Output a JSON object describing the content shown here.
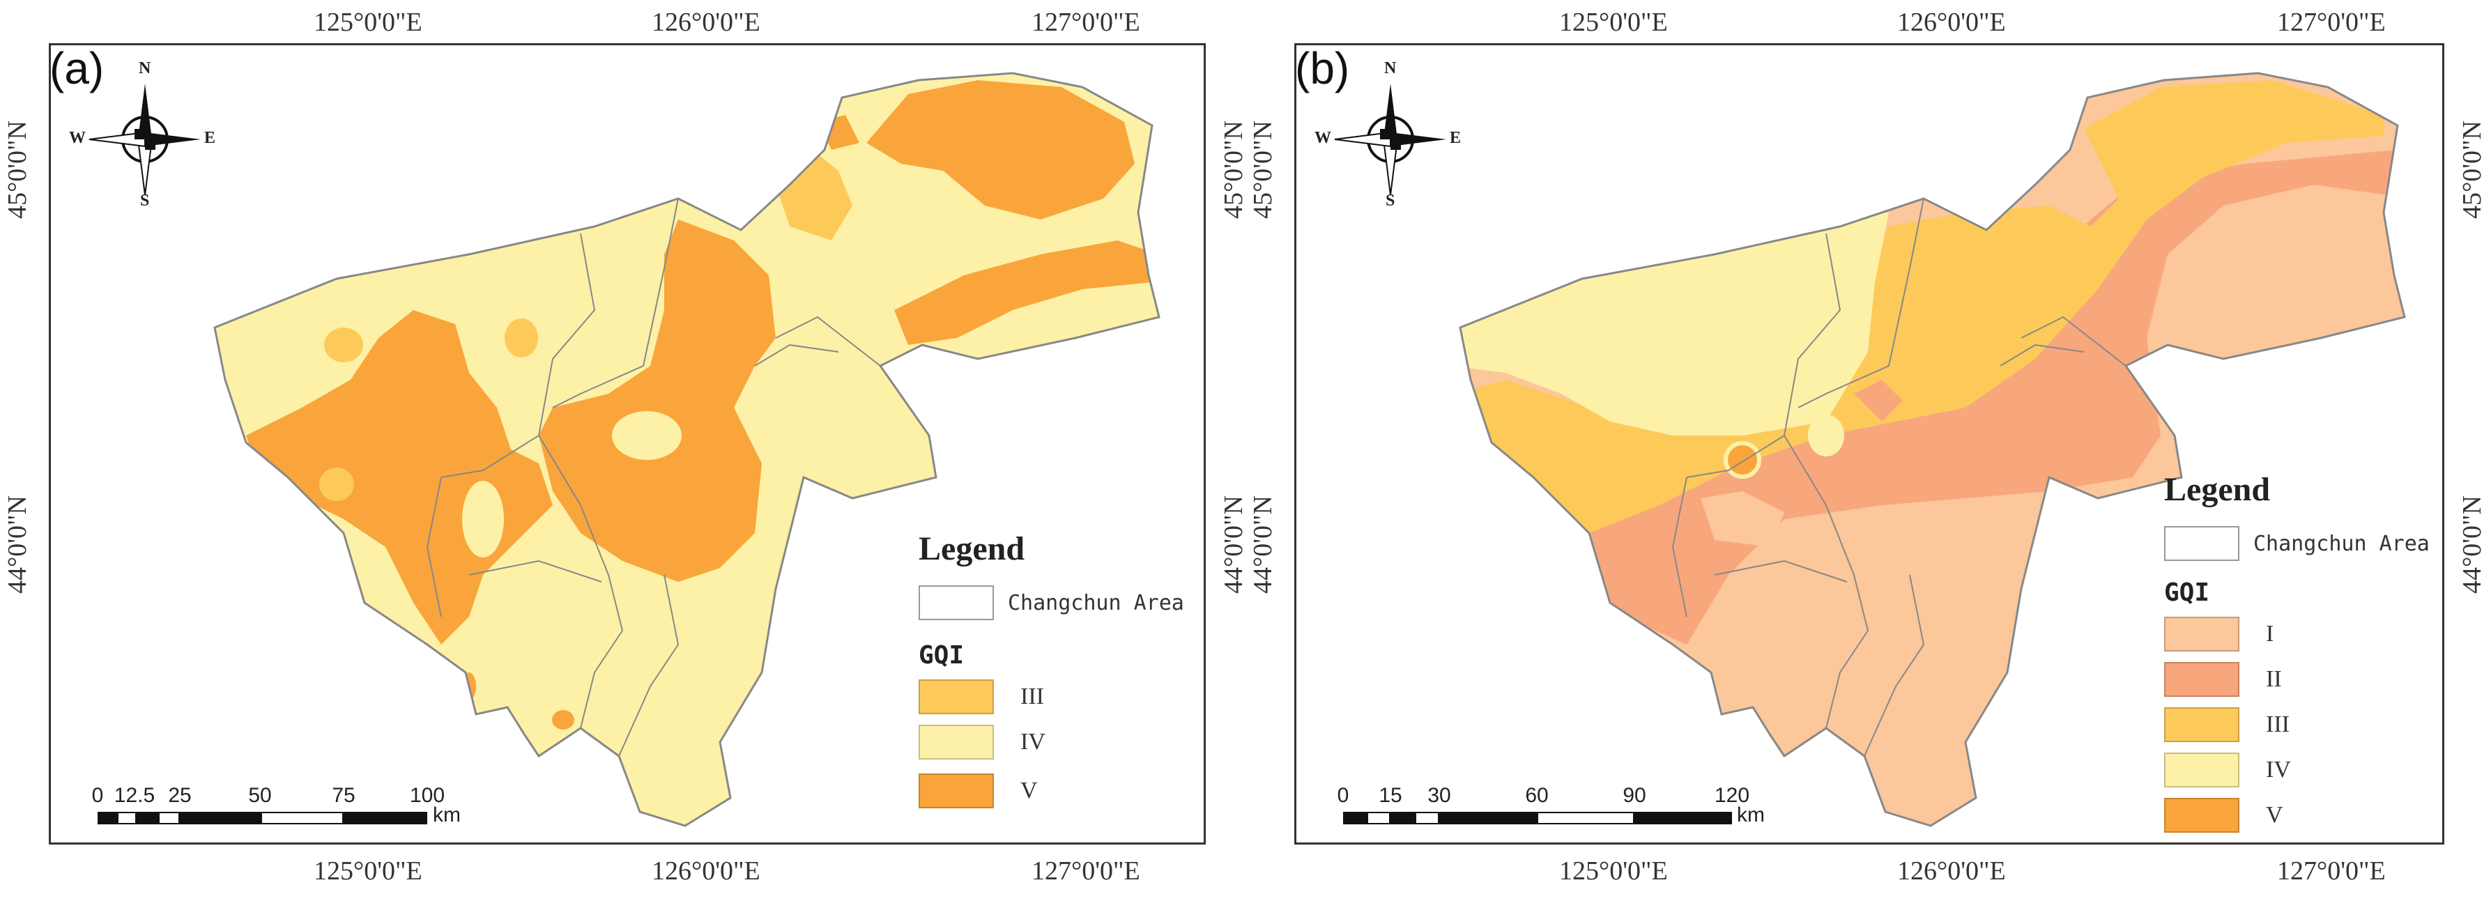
{
  "panels": [
    {
      "label": "(a)",
      "lon_labels": [
        "125°0'0\"E",
        "126°0'0\"E",
        "127°0'0\"E"
      ],
      "lat_labels": [
        "45°0'0\"N",
        "44°0'0\"N"
      ],
      "compass": {
        "n": "N",
        "s": "S",
        "e": "E",
        "w": "W"
      },
      "legend": {
        "title": "Legend",
        "area_label": "Changchun Area",
        "gqi_title": "GQI",
        "classes": [
          {
            "label": "III",
            "color": "#fdca5a"
          },
          {
            "label": "IV",
            "color": "#fdf1a7"
          },
          {
            "label": "V",
            "color": "#f9a53c"
          }
        ]
      },
      "scale": {
        "ticks": [
          "0",
          "12.5",
          "25",
          "50",
          "75",
          "100"
        ],
        "unit": "km"
      }
    },
    {
      "label": "(b)",
      "lon_labels": [
        "125°0'0\"E",
        "126°0'0\"E",
        "127°0'0\"E"
      ],
      "lat_labels": [
        "45°0'0\"N",
        "44°0'0\"N"
      ],
      "compass": {
        "n": "N",
        "s": "S",
        "e": "E",
        "w": "W"
      },
      "legend": {
        "title": "Legend",
        "area_label": "Changchun Area",
        "gqi_title": "GQI",
        "classes": [
          {
            "label": "I",
            "color": "#fbc79b"
          },
          {
            "label": "II",
            "color": "#f8a77d"
          },
          {
            "label": "III",
            "color": "#fdca5a"
          },
          {
            "label": "IV",
            "color": "#fdf1a7"
          },
          {
            "label": "V",
            "color": "#f9a53c"
          }
        ]
      },
      "scale": {
        "ticks": [
          "0",
          "15",
          "30",
          "60",
          "90",
          "120"
        ],
        "unit": "km"
      }
    }
  ],
  "colors": {
    "outline": "#888888",
    "frame": "#333333"
  }
}
